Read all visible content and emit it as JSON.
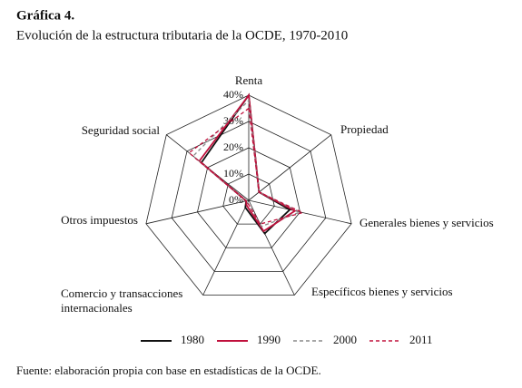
{
  "chart_data": {
    "type": "radar",
    "title": "Gráfica 4.",
    "subtitle": "Evolución de la estructura tributaria de la OCDE, 1970-2010",
    "categories": [
      "Renta",
      "Propiedad",
      "Generales bienes y servicios",
      "Específicos bienes y servicios",
      "Comercio y transacciones\ninternacionales",
      "Otros impuestos",
      "Seguridad social"
    ],
    "series": [
      {
        "name": "1980",
        "color": "#111111",
        "dash": "solid",
        "values": [
          40,
          5,
          16,
          14,
          3,
          1,
          23
        ]
      },
      {
        "name": "1990",
        "color": "#c0103c",
        "dash": "solid",
        "values": [
          40,
          5,
          18,
          13,
          2,
          1,
          24
        ]
      },
      {
        "name": "2000",
        "color": "#888888",
        "dash": "dashed",
        "values": [
          38,
          5,
          20,
          11,
          1,
          1,
          27
        ]
      },
      {
        "name": "2011",
        "color": "#c0103c",
        "dash": "dashed",
        "values": [
          35,
          5,
          21,
          10,
          1,
          1,
          29
        ]
      }
    ],
    "ylim": [
      0,
      40
    ],
    "yticks": [
      {
        "value": 0,
        "label": "0%"
      },
      {
        "value": 10,
        "label": "10%"
      },
      {
        "value": 20,
        "label": "20%"
      },
      {
        "value": 30,
        "label": "30%"
      },
      {
        "value": 40,
        "label": "40%"
      }
    ],
    "grid": true,
    "legend": "bottom",
    "source": "Fuente: elaboración propia con base en estadísticas de la OCDE."
  }
}
